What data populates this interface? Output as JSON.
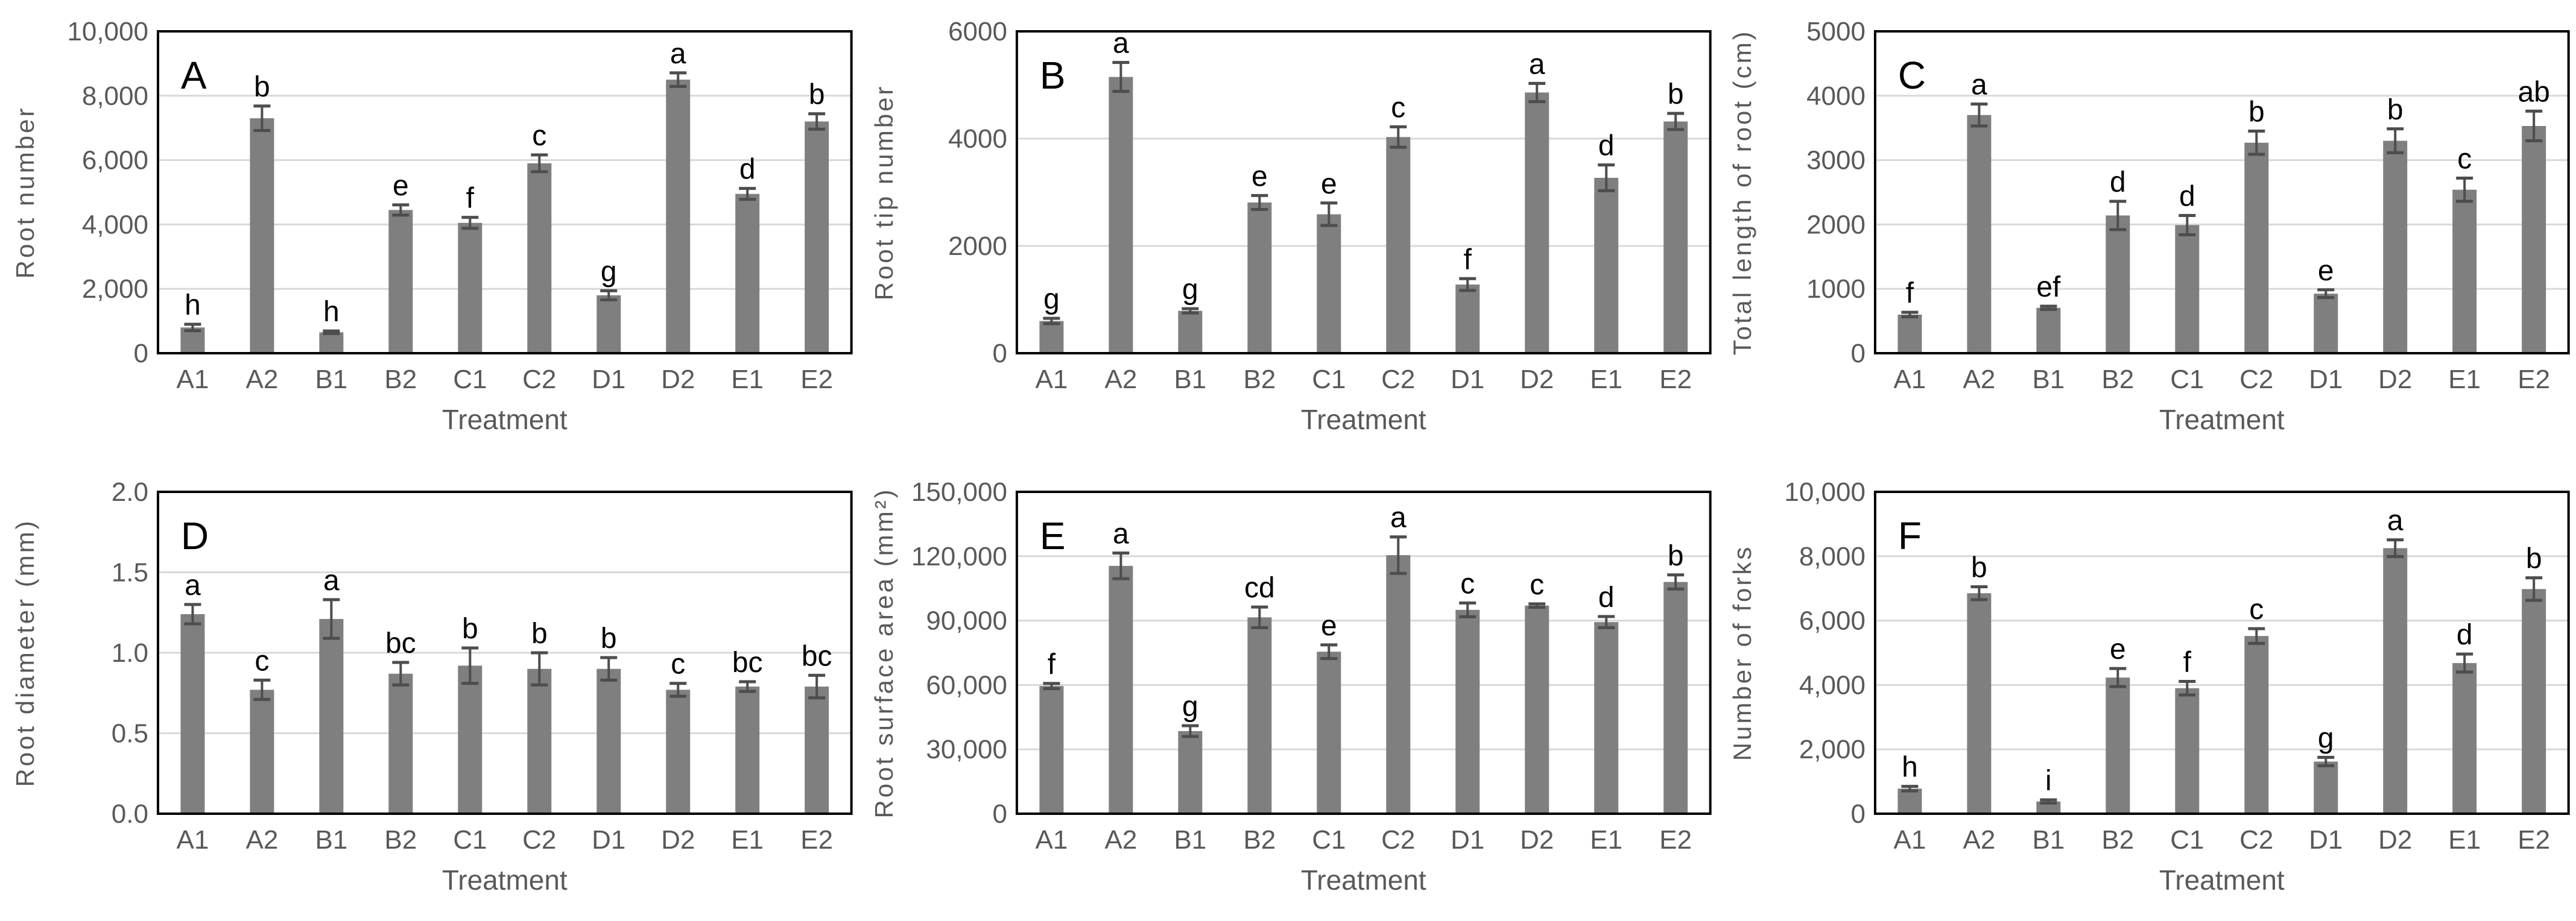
{
  "figure": {
    "description": "Six-panel bar chart figure (panels A to F) showing root trait measurements by treatment with error bars and significance letters",
    "x_axis_title": "Treatment",
    "categories": [
      "A1",
      "A2",
      "B1",
      "B2",
      "C1",
      "C2",
      "D1",
      "D2",
      "E1",
      "E2"
    ]
  },
  "style": {
    "bar_color": "#7F7F7F",
    "error_bar_color": "#4D4D4D",
    "grid_color": "#D9D9D9",
    "frame_color": "#000000",
    "axis_text_color": "#595959",
    "sig_letter_color": "#000000",
    "panel_letter_color": "#000000",
    "background": "#FFFFFF"
  },
  "chart_data": [
    {
      "type": "bar",
      "panel": "A",
      "title": "",
      "ylabel": "Root number",
      "xlabel": "Treatment",
      "grid": true,
      "legend": false,
      "ylim": [
        0,
        10000
      ],
      "ytick_values": [
        0,
        2000,
        4000,
        6000,
        8000,
        10000
      ],
      "ytick_labels": [
        "0",
        "2,000",
        "4,000",
        "6,000",
        "8,000",
        "10,000"
      ],
      "categories": [
        "A1",
        "A2",
        "B1",
        "B2",
        "C1",
        "C2",
        "D1",
        "D2",
        "E1",
        "E2"
      ],
      "values": [
        800,
        7300,
        650,
        4450,
        4050,
        5900,
        1800,
        8500,
        4950,
        7200
      ],
      "errors": [
        100,
        380,
        40,
        160,
        170,
        260,
        140,
        210,
        170,
        240
      ],
      "letters": [
        "h",
        "b",
        "h",
        "e",
        "f",
        "c",
        "g",
        "a",
        "d",
        "b"
      ]
    },
    {
      "type": "bar",
      "panel": "B",
      "title": "",
      "ylabel": "Root tip number",
      "xlabel": "Treatment",
      "grid": true,
      "legend": false,
      "ylim": [
        0,
        6000
      ],
      "ytick_values": [
        0,
        2000,
        4000,
        6000
      ],
      "ytick_labels": [
        "0",
        "2000",
        "4000",
        "6000"
      ],
      "categories": [
        "A1",
        "A2",
        "B1",
        "B2",
        "C1",
        "C2",
        "D1",
        "D2",
        "E1",
        "E2"
      ],
      "values": [
        600,
        5150,
        790,
        2810,
        2590,
        4030,
        1280,
        4860,
        3270,
        4320
      ],
      "errors": [
        50,
        270,
        40,
        130,
        210,
        190,
        110,
        170,
        240,
        150
      ],
      "letters": [
        "g",
        "a",
        "g",
        "e",
        "e",
        "c",
        "f",
        "a",
        "d",
        "b"
      ]
    },
    {
      "type": "bar",
      "panel": "C",
      "title": "",
      "ylabel": "Total length of root (cm)",
      "xlabel": "Treatment",
      "grid": true,
      "legend": false,
      "ylim": [
        0,
        5000
      ],
      "ytick_values": [
        0,
        1000,
        2000,
        3000,
        4000,
        5000
      ],
      "ytick_labels": [
        "0",
        "1000",
        "2000",
        "3000",
        "4000",
        "5000"
      ],
      "categories": [
        "A1",
        "A2",
        "B1",
        "B2",
        "C1",
        "C2",
        "D1",
        "D2",
        "E1",
        "E2"
      ],
      "values": [
        600,
        3700,
        705,
        2140,
        1990,
        3270,
        925,
        3300,
        2540,
        3530
      ],
      "errors": [
        35,
        170,
        25,
        220,
        150,
        180,
        60,
        185,
        180,
        230
      ],
      "letters": [
        "f",
        "a",
        "ef",
        "d",
        "d",
        "b",
        "e",
        "b",
        "c",
        "ab"
      ]
    },
    {
      "type": "bar",
      "panel": "D",
      "title": "",
      "ylabel": "Root diameter (mm)",
      "xlabel": "Treatment",
      "grid": true,
      "legend": false,
      "ylim": [
        0,
        2
      ],
      "ytick_values": [
        0,
        0.5,
        1,
        1.5,
        2
      ],
      "ytick_labels": [
        "0.0",
        "0.5",
        "1.0",
        "1.5",
        "2.0"
      ],
      "categories": [
        "A1",
        "A2",
        "B1",
        "B2",
        "C1",
        "C2",
        "D1",
        "D2",
        "E1",
        "E2"
      ],
      "values": [
        1.24,
        0.77,
        1.21,
        0.87,
        0.92,
        0.9,
        0.9,
        0.77,
        0.79,
        0.79
      ],
      "errors": [
        0.06,
        0.06,
        0.12,
        0.07,
        0.11,
        0.1,
        0.07,
        0.04,
        0.03,
        0.07
      ],
      "letters": [
        "a",
        "c",
        "a",
        "bc",
        "b",
        "b",
        "b",
        "c",
        "bc",
        "bc"
      ]
    },
    {
      "type": "bar",
      "panel": "E",
      "title": "",
      "ylabel": "Root surface area (mm²)",
      "xlabel": "Treatment",
      "grid": true,
      "legend": false,
      "ylim": [
        0,
        150000
      ],
      "ytick_values": [
        0,
        30000,
        60000,
        90000,
        120000,
        150000
      ],
      "ytick_labels": [
        "0",
        "30,000",
        "60,000",
        "90,000",
        "120,000",
        "150,000"
      ],
      "categories": [
        "A1",
        "A2",
        "B1",
        "B2",
        "C1",
        "C2",
        "D1",
        "D2",
        "E1",
        "E2"
      ],
      "values": [
        59500,
        115500,
        38500,
        91500,
        75500,
        120500,
        95000,
        97000,
        89300,
        108000
      ],
      "errors": [
        1200,
        6000,
        2500,
        4800,
        3200,
        8500,
        3200,
        800,
        2600,
        3300
      ],
      "letters": [
        "f",
        "a",
        "g",
        "cd",
        "e",
        "a",
        "c",
        "c",
        "d",
        "b"
      ]
    },
    {
      "type": "bar",
      "panel": "F",
      "title": "",
      "ylabel": "Number of forks",
      "xlabel": "Treatment",
      "grid": true,
      "legend": false,
      "ylim": [
        0,
        10000
      ],
      "ytick_values": [
        0,
        2000,
        4000,
        6000,
        8000,
        10000
      ],
      "ytick_labels": [
        "0",
        "2,000",
        "4,000",
        "6,000",
        "8,000",
        "10,000"
      ],
      "categories": [
        "A1",
        "A2",
        "B1",
        "B2",
        "C1",
        "C2",
        "D1",
        "D2",
        "E1",
        "E2"
      ],
      "values": [
        780,
        6850,
        380,
        4230,
        3900,
        5520,
        1620,
        8250,
        4680,
        6980
      ],
      "errors": [
        70,
        200,
        50,
        280,
        210,
        230,
        130,
        260,
        280,
        350
      ],
      "letters": [
        "h",
        "b",
        "i",
        "e",
        "f",
        "c",
        "g",
        "a",
        "d",
        "b"
      ]
    }
  ]
}
